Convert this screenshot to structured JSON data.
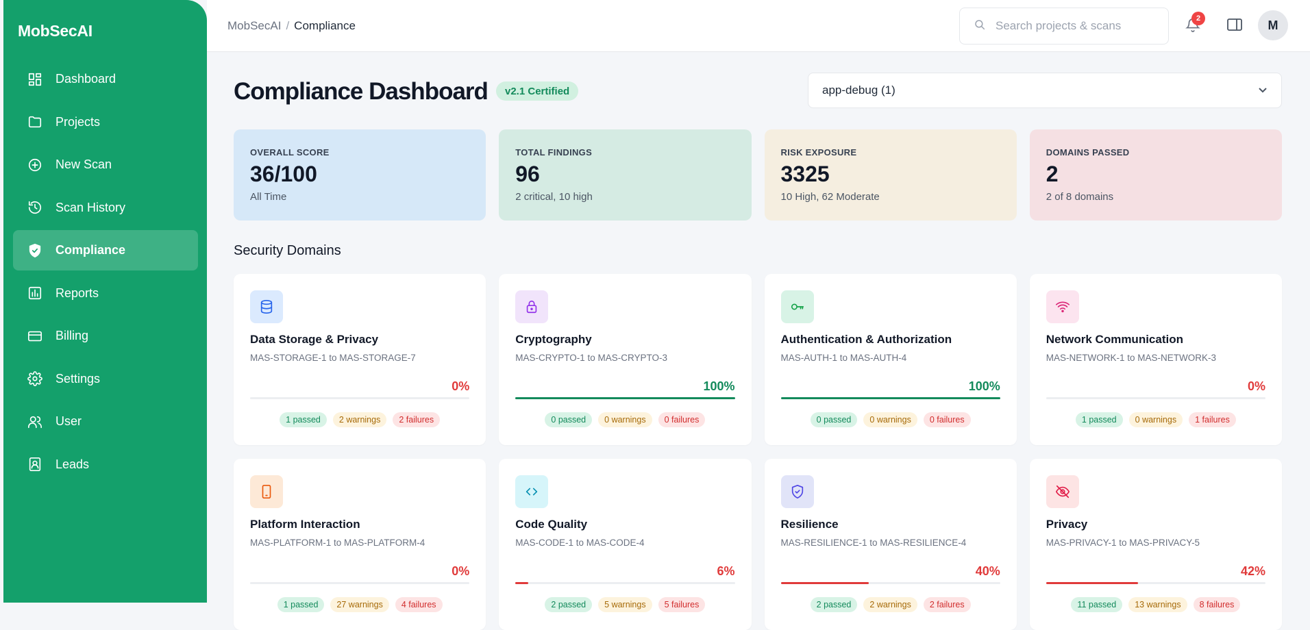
{
  "brand": "MobSecAI",
  "nav": [
    {
      "label": "Dashboard",
      "icon": "dashboard-icon",
      "active": false
    },
    {
      "label": "Projects",
      "icon": "folder-icon",
      "active": false
    },
    {
      "label": "New Scan",
      "icon": "plus-circle-icon",
      "active": false
    },
    {
      "label": "Scan History",
      "icon": "history-icon",
      "active": false
    },
    {
      "label": "Compliance",
      "icon": "shield-check-icon",
      "active": true
    },
    {
      "label": "Reports",
      "icon": "bar-chart-icon",
      "active": false
    },
    {
      "label": "Billing",
      "icon": "credit-card-icon",
      "active": false
    },
    {
      "label": "Settings",
      "icon": "gear-icon",
      "active": false
    },
    {
      "label": "User",
      "icon": "users-icon",
      "active": false
    },
    {
      "label": "Leads",
      "icon": "contact-icon",
      "active": false
    }
  ],
  "header": {
    "breadcrumb_root": "MobSecAI",
    "breadcrumb_sep": "/",
    "breadcrumb_current": "Compliance",
    "search_placeholder": "Search projects & scans",
    "notification_count": "2",
    "avatar_initial": "M"
  },
  "page": {
    "title": "Compliance Dashboard",
    "cert_badge": "v2.1 Certified",
    "project_select": "app-debug (1)"
  },
  "stats": [
    {
      "label": "OVERALL SCORE",
      "value": "36/100",
      "sub": "All Time",
      "bg": "#d6e8f8"
    },
    {
      "label": "TOTAL FINDINGS",
      "value": "96",
      "sub": "2 critical, 10 high",
      "bg": "#d5ebe3"
    },
    {
      "label": "RISK EXPOSURE",
      "value": "3325",
      "sub": "10 High, 62 Moderate",
      "bg": "#f5eee0"
    },
    {
      "label": "DOMAINS PASSED",
      "value": "2",
      "sub": "2 of 8 domains",
      "bg": "#f5e0e3"
    }
  ],
  "section_title": "Security Domains",
  "domains": [
    {
      "title": "Data Storage & Privacy",
      "range": "MAS-STORAGE-1 to MAS-STORAGE-7",
      "pct": "0%",
      "progress": 0,
      "passed": "1 passed",
      "warnings": "2 warnings",
      "failures": "2 failures",
      "icon": "database-icon",
      "icon_bg": "#dbeafe",
      "icon_color": "#2563eb"
    },
    {
      "title": "Cryptography",
      "range": "MAS-CRYPTO-1 to MAS-CRYPTO-3",
      "pct": "100%",
      "progress": 100,
      "passed": "0 passed",
      "warnings": "0 warnings",
      "failures": "0 failures",
      "icon": "lock-icon",
      "icon_bg": "#f1e4fb",
      "icon_color": "#9333ea"
    },
    {
      "title": "Authentication & Authorization",
      "range": "MAS-AUTH-1 to MAS-AUTH-4",
      "pct": "100%",
      "progress": 100,
      "passed": "0 passed",
      "warnings": "0 warnings",
      "failures": "0 failures",
      "icon": "key-icon",
      "icon_bg": "#d8f3e6",
      "icon_color": "#16a34a"
    },
    {
      "title": "Network Communication",
      "range": "MAS-NETWORK-1 to MAS-NETWORK-3",
      "pct": "0%",
      "progress": 0,
      "passed": "1 passed",
      "warnings": "0 warnings",
      "failures": "1 failures",
      "icon": "wifi-icon",
      "icon_bg": "#fce4ef",
      "icon_color": "#db2777"
    },
    {
      "title": "Platform Interaction",
      "range": "MAS-PLATFORM-1 to MAS-PLATFORM-4",
      "pct": "0%",
      "progress": 0,
      "passed": "1 passed",
      "warnings": "27 warnings",
      "failures": "4 failures",
      "icon": "smartphone-icon",
      "icon_bg": "#fde9d7",
      "icon_color": "#ea580c"
    },
    {
      "title": "Code Quality",
      "range": "MAS-CODE-1 to MAS-CODE-4",
      "pct": "6%",
      "progress": 6,
      "passed": "2 passed",
      "warnings": "5 warnings",
      "failures": "5 failures",
      "icon": "code-icon",
      "icon_bg": "#d6f5fa",
      "icon_color": "#0891b2"
    },
    {
      "title": "Resilience",
      "range": "MAS-RESILIENCE-1 to MAS-RESILIENCE-4",
      "pct": "40%",
      "progress": 40,
      "passed": "2 passed",
      "warnings": "2 warnings",
      "failures": "2 failures",
      "icon": "shield-icon",
      "icon_bg": "#e1e4f8",
      "icon_color": "#4f46e5"
    },
    {
      "title": "Privacy",
      "range": "MAS-PRIVACY-1 to MAS-PRIVACY-5",
      "pct": "42%",
      "progress": 42,
      "passed": "11 passed",
      "warnings": "13 warnings",
      "failures": "8 failures",
      "icon": "eye-off-icon",
      "icon_bg": "#fde4e4",
      "icon_color": "#e11d48"
    }
  ],
  "colors": {
    "sidebar": "#14a06b",
    "good": "#138a5b",
    "bad": "#e03a3a"
  }
}
